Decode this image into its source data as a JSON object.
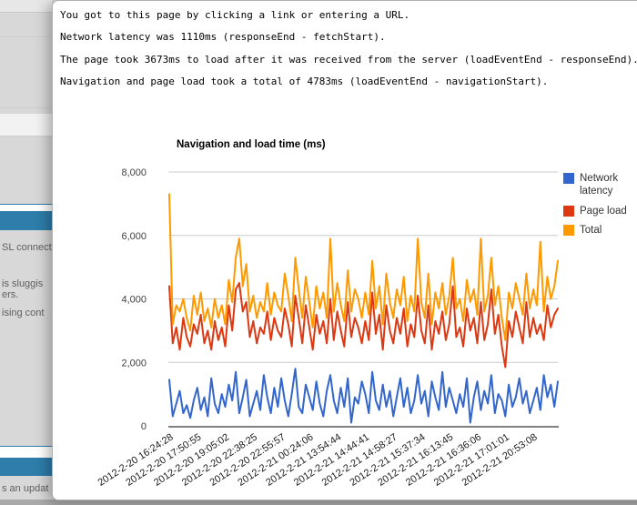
{
  "background_page": {
    "fragments": [
      "SL connect",
      "is sluggis",
      "ers.",
      "ising cont",
      "s an updat"
    ],
    "header_bar_color": "#2E7DAB"
  },
  "popup": {
    "info_lines": [
      "You got to this page by clicking a link or entering a URL.",
      "Network latency was 1110ms (responseEnd - fetchStart).",
      "The page took 3673ms to load after it was received from the server (loadEventEnd - responseEnd).",
      "Navigation and page load took a total of 4783ms (loadEventEnd - navigationStart)."
    ]
  },
  "chart_data": {
    "type": "line",
    "title": "Navigation and load time (ms)",
    "ylim": [
      0,
      8000
    ],
    "grid": true,
    "legend_position": "right",
    "axis_color": "#808080",
    "gridline_color": "#cccccc",
    "y_ticks": [
      {
        "value": 0,
        "label": "0"
      },
      {
        "value": 2000,
        "label": "2,000"
      },
      {
        "value": 4000,
        "label": "4,000"
      },
      {
        "value": 6000,
        "label": "6,000"
      },
      {
        "value": 8000,
        "label": "8,000"
      }
    ],
    "x_tick_labels": [
      "2012-2-20 16:24:28",
      "2012-2-20 17:50:55",
      "2012-2-20 19:05:02",
      "2012-2-20 22:38:25",
      "2012-2-20 22:55:57",
      "2012-2-21 00:24:06",
      "2012-2-21 13:54:44",
      "2012-2-21 14:44:41",
      "2012-2-21 14:58:27",
      "2012-2-21 15:37:34",
      "2012-2-21 16:13:45",
      "2012-2-21 16:36:06",
      "2012-2-21 17:01:01",
      "2012-2-21 20:53:08"
    ],
    "series": [
      {
        "name": "Network latency",
        "color": "#3366CC",
        "values": [
          1450,
          300,
          700,
          1100,
          400,
          650,
          250,
          800,
          1200,
          500,
          900,
          300,
          1500,
          700,
          400,
          1000,
          600,
          1300,
          800,
          1700,
          400,
          900,
          1450,
          300,
          700,
          1100,
          500,
          1600,
          900,
          400,
          1200,
          600,
          1500,
          800,
          300,
          1000,
          1800,
          600,
          400,
          1300,
          900,
          500,
          1400,
          700,
          300,
          1100,
          1600,
          800,
          400,
          1200,
          600,
          1500,
          100,
          900,
          700,
          1400,
          1000,
          400,
          1700,
          800,
          500,
          1300,
          600,
          1100,
          300,
          900,
          1500,
          600,
          1200,
          400,
          800,
          1600,
          700,
          1100,
          300,
          1400,
          900,
          500,
          1700,
          600,
          1200,
          800,
          400,
          1000,
          600,
          1500,
          100,
          900,
          1400,
          500,
          1100,
          700,
          1600,
          400,
          1000,
          800,
          300,
          1300,
          600,
          900,
          1500,
          700,
          1100,
          400,
          800,
          1200,
          500,
          1600,
          900,
          1300,
          600,
          1400
        ]
      },
      {
        "name": "Page load",
        "color": "#DC3912",
        "values": [
          4400,
          2600,
          3100,
          2400,
          3400,
          2800,
          2500,
          3200,
          2900,
          3500,
          2600,
          3000,
          2400,
          3300,
          2700,
          3100,
          2500,
          3800,
          3000,
          4300,
          4500,
          3600,
          3900,
          2800,
          3300,
          2600,
          3100,
          2900,
          3600,
          2700,
          3400,
          3000,
          2800,
          3700,
          3200,
          2500,
          4100,
          3400,
          2600,
          3800,
          3100,
          2400,
          3500,
          2900,
          3300,
          2600,
          4000,
          2700,
          3600,
          3000,
          2500,
          3900,
          2800,
          3400,
          3100,
          2600,
          3300,
          2700,
          4200,
          2900,
          3500,
          2400,
          3800,
          3000,
          2600,
          3400,
          2900,
          3700,
          2500,
          3200,
          2800,
          4100,
          3000,
          2600,
          3800,
          2400,
          3300,
          2900,
          3600,
          2700,
          3200,
          4400,
          2800,
          3100,
          2500,
          3700,
          3000,
          3400,
          2600,
          3900,
          2700,
          3200,
          4300,
          2900,
          3500,
          2500,
          1850,
          3300,
          2800,
          3600,
          3100,
          2600,
          3900,
          2800,
          3400,
          2900,
          3200,
          2700,
          3800,
          3100,
          3500,
          3700
        ]
      },
      {
        "name": "Total",
        "color": "#FF9900",
        "values": [
          7300,
          3200,
          3800,
          3600,
          4000,
          3400,
          3000,
          4100,
          3500,
          4200,
          3300,
          3700,
          3100,
          4000,
          3400,
          3800,
          3200,
          4600,
          3900,
          5300,
          5900,
          4400,
          5100,
          3600,
          4100,
          3400,
          3900,
          3600,
          4500,
          3500,
          4200,
          3800,
          3600,
          4800,
          4100,
          3300,
          5300,
          4300,
          3400,
          4700,
          3900,
          3100,
          4400,
          3700,
          4200,
          3400,
          5900,
          3600,
          4500,
          3800,
          3300,
          4900,
          3600,
          4300,
          4000,
          3400,
          4200,
          3500,
          5200,
          3700,
          4400,
          3200,
          4800,
          3900,
          3400,
          4300,
          3800,
          4700,
          3300,
          4100,
          3600,
          5900,
          3900,
          3400,
          4800,
          3200,
          4200,
          3700,
          4500,
          3500,
          4100,
          5300,
          3700,
          4000,
          3300,
          4600,
          3900,
          4300,
          3500,
          5900,
          3600,
          4100,
          5300,
          3800,
          4400,
          3400,
          2700,
          4200,
          3700,
          4500,
          4000,
          3500,
          4800,
          3700,
          4300,
          3800,
          5800,
          3600,
          4700,
          4000,
          4400,
          5200
        ]
      }
    ]
  }
}
